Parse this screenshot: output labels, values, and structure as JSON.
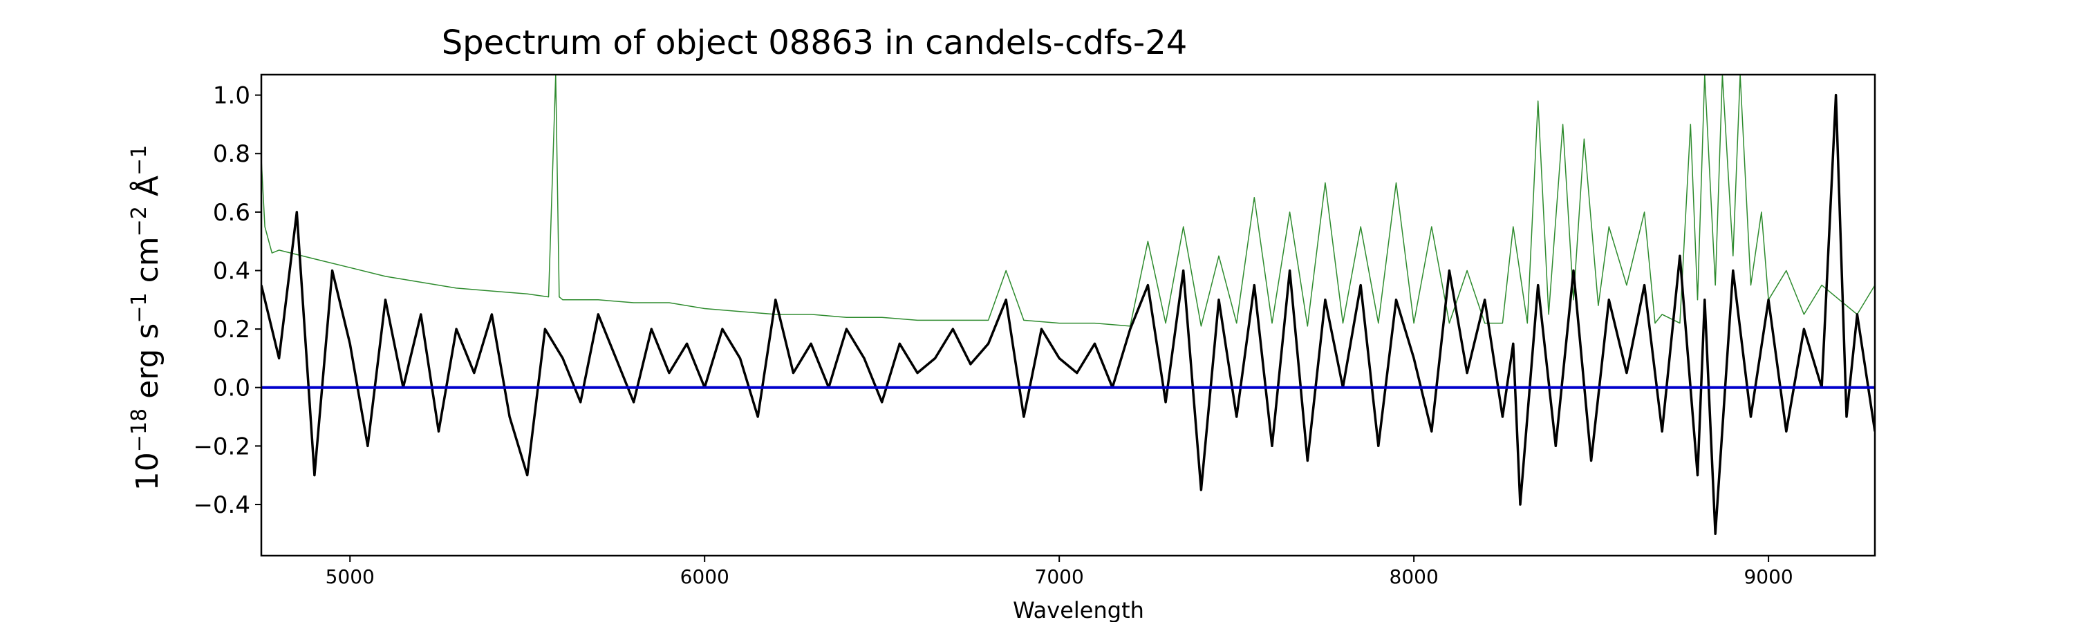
{
  "chart_data": {
    "type": "line",
    "title": "Spectrum of object 08863 in candels-cdfs-24",
    "xlabel": "Wavelength",
    "ylabel_parts": [
      "10",
      "−18",
      " erg s",
      "−1",
      " cm",
      "−2",
      " Å",
      "−1"
    ],
    "xlim": [
      4750,
      9300
    ],
    "ylim": [
      -0.575,
      1.07
    ],
    "xticks": [
      5000,
      6000,
      7000,
      8000,
      9000
    ],
    "yticks": [
      -0.4,
      -0.2,
      0.0,
      0.2,
      0.4,
      0.6,
      0.8,
      1.0
    ],
    "ytick_labels": [
      "−0.4",
      "−0.2",
      "0.0",
      "0.2",
      "0.4",
      "0.6",
      "0.8",
      "1.0"
    ],
    "grid": false,
    "legend": "none",
    "colors": {
      "flux": "#000000",
      "error": "#2e8b2e",
      "zero": "#0000cc"
    },
    "series": [
      {
        "role": "flux",
        "x": [
          4750,
          4800,
          4850,
          4900,
          4950,
          5000,
          5050,
          5100,
          5150,
          5200,
          5250,
          5300,
          5350,
          5400,
          5450,
          5500,
          5550,
          5600,
          5650,
          5700,
          5750,
          5800,
          5850,
          5900,
          5950,
          6000,
          6050,
          6100,
          6150,
          6200,
          6250,
          6300,
          6350,
          6400,
          6450,
          6500,
          6550,
          6600,
          6650,
          6700,
          6750,
          6800,
          6850,
          6900,
          6950,
          7000,
          7050,
          7100,
          7150,
          7200,
          7250,
          7300,
          7350,
          7400,
          7450,
          7500,
          7550,
          7600,
          7650,
          7700,
          7750,
          7800,
          7850,
          7900,
          7950,
          8000,
          8050,
          8100,
          8150,
          8200,
          8250,
          8280,
          8300,
          8350,
          8400,
          8450,
          8500,
          8550,
          8600,
          8650,
          8700,
          8750,
          8800,
          8820,
          8850,
          8900,
          8950,
          9000,
          9050,
          9100,
          9150,
          9190,
          9220,
          9250,
          9300
        ],
        "y": [
          0.35,
          0.1,
          0.6,
          -0.3,
          0.4,
          0.15,
          -0.2,
          0.3,
          0.0,
          0.25,
          -0.15,
          0.2,
          0.05,
          0.25,
          -0.1,
          -0.3,
          0.2,
          0.1,
          -0.05,
          0.25,
          0.1,
          -0.05,
          0.2,
          0.05,
          0.15,
          0.0,
          0.2,
          0.1,
          -0.1,
          0.3,
          0.05,
          0.15,
          0.0,
          0.2,
          0.1,
          -0.05,
          0.15,
          0.05,
          0.1,
          0.2,
          0.08,
          0.15,
          0.3,
          -0.1,
          0.2,
          0.1,
          0.05,
          0.15,
          0.0,
          0.2,
          0.35,
          -0.05,
          0.4,
          -0.35,
          0.3,
          -0.1,
          0.35,
          -0.2,
          0.4,
          -0.25,
          0.3,
          0.0,
          0.35,
          -0.2,
          0.3,
          0.1,
          -0.15,
          0.4,
          0.05,
          0.3,
          -0.1,
          0.15,
          -0.4,
          0.35,
          -0.2,
          0.4,
          -0.25,
          0.3,
          0.05,
          0.35,
          -0.15,
          0.45,
          -0.3,
          0.3,
          -0.5,
          0.4,
          -0.1,
          0.3,
          -0.15,
          0.2,
          0.0,
          1.0,
          -0.1,
          0.25,
          -0.15
        ]
      },
      {
        "role": "error",
        "x": [
          4750,
          4760,
          4780,
          4800,
          4900,
          5000,
          5100,
          5200,
          5300,
          5400,
          5500,
          5560,
          5580,
          5590,
          5600,
          5700,
          5800,
          5900,
          6000,
          6100,
          6200,
          6300,
          6400,
          6500,
          6600,
          6700,
          6800,
          6850,
          6900,
          7000,
          7100,
          7200,
          7250,
          7300,
          7350,
          7400,
          7450,
          7500,
          7550,
          7600,
          7650,
          7700,
          7750,
          7800,
          7850,
          7900,
          7950,
          8000,
          8050,
          8100,
          8150,
          8200,
          8250,
          8280,
          8320,
          8350,
          8380,
          8420,
          8450,
          8480,
          8520,
          8550,
          8600,
          8650,
          8680,
          8700,
          8750,
          8780,
          8800,
          8820,
          8850,
          8870,
          8900,
          8920,
          8950,
          8980,
          9000,
          9050,
          9100,
          9150,
          9200,
          9250,
          9300
        ],
        "y": [
          0.78,
          0.55,
          0.46,
          0.47,
          0.44,
          0.41,
          0.38,
          0.36,
          0.34,
          0.33,
          0.32,
          0.31,
          1.07,
          0.31,
          0.3,
          0.3,
          0.29,
          0.29,
          0.27,
          0.26,
          0.25,
          0.25,
          0.24,
          0.24,
          0.23,
          0.23,
          0.23,
          0.4,
          0.23,
          0.22,
          0.22,
          0.21,
          0.5,
          0.22,
          0.55,
          0.21,
          0.45,
          0.22,
          0.65,
          0.22,
          0.6,
          0.21,
          0.7,
          0.22,
          0.55,
          0.22,
          0.7,
          0.22,
          0.55,
          0.22,
          0.4,
          0.22,
          0.22,
          0.55,
          0.22,
          0.98,
          0.25,
          0.9,
          0.3,
          0.85,
          0.28,
          0.55,
          0.35,
          0.6,
          0.22,
          0.25,
          0.22,
          0.9,
          0.3,
          1.07,
          0.35,
          1.07,
          0.45,
          1.07,
          0.35,
          0.6,
          0.3,
          0.4,
          0.25,
          0.35,
          0.3,
          0.25,
          0.35
        ]
      },
      {
        "role": "zero",
        "x": [
          4750,
          9300
        ],
        "y": [
          0.0,
          0.0
        ]
      }
    ]
  }
}
